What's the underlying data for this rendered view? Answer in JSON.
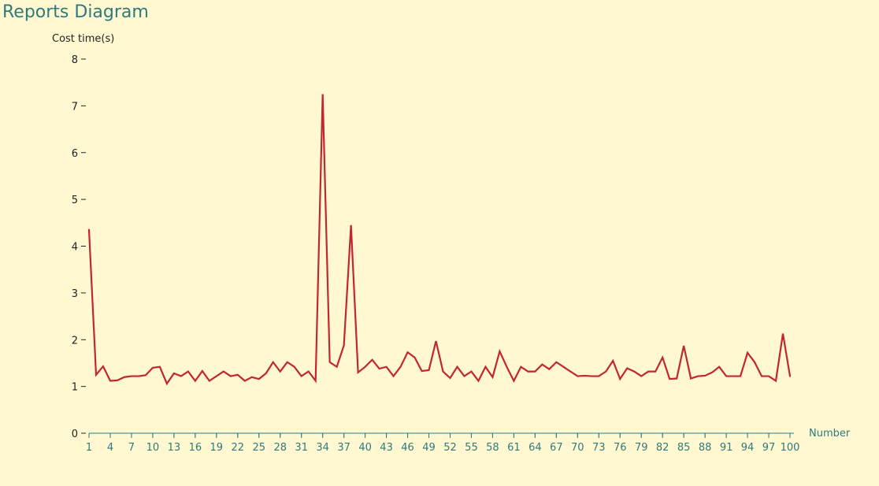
{
  "title": "Reports Diagram",
  "chart_data": {
    "type": "line",
    "ylabel": "Cost time(s)",
    "xlabel": "Number",
    "xlim": [
      1,
      100
    ],
    "ylim": [
      0,
      8
    ],
    "y_ticks": [
      "0",
      "1",
      "2",
      "3",
      "4",
      "5",
      "6",
      "7",
      "8"
    ],
    "x_ticks": [
      "1",
      "4",
      "7",
      "10",
      "13",
      "16",
      "19",
      "22",
      "25",
      "28",
      "31",
      "34",
      "37",
      "40",
      "43",
      "46",
      "49",
      "52",
      "55",
      "58",
      "61",
      "64",
      "67",
      "70",
      "73",
      "76",
      "79",
      "82",
      "85",
      "88",
      "91",
      "94",
      "97",
      "100"
    ],
    "grid": false,
    "colors": {
      "line": "#c1272d",
      "x_axis": "#2d7b7d",
      "y_axis": "#222222"
    },
    "series": [
      {
        "x": [
          1,
          2,
          3,
          4,
          5,
          6,
          7,
          8,
          9,
          10,
          11,
          12,
          13,
          14,
          15,
          16,
          17,
          18,
          19,
          20,
          21,
          22,
          23,
          24,
          25,
          26,
          27,
          28,
          29,
          30,
          31,
          32,
          33,
          34,
          35,
          36,
          37,
          38,
          39,
          40,
          41,
          42,
          43,
          44,
          45,
          46,
          47,
          48,
          49,
          50,
          51,
          52,
          53,
          54,
          55,
          56,
          57,
          58,
          59,
          60,
          61,
          62,
          63,
          64,
          65,
          66,
          67,
          68,
          69,
          70,
          71,
          72,
          73,
          74,
          75,
          76,
          77,
          78,
          79,
          80,
          81,
          82,
          83,
          84,
          85,
          86,
          87,
          88,
          89,
          90,
          91,
          92,
          93,
          94,
          95,
          96,
          97,
          98,
          99,
          100
        ],
        "values": [
          4.35,
          1.25,
          1.43,
          1.12,
          1.13,
          1.2,
          1.22,
          1.22,
          1.24,
          1.4,
          1.42,
          1.06,
          1.28,
          1.22,
          1.32,
          1.12,
          1.33,
          1.12,
          1.22,
          1.32,
          1.22,
          1.25,
          1.12,
          1.2,
          1.16,
          1.28,
          1.52,
          1.32,
          1.52,
          1.42,
          1.22,
          1.32,
          1.12,
          7.25,
          1.52,
          1.42,
          1.88,
          4.45,
          1.3,
          1.42,
          1.57,
          1.38,
          1.42,
          1.22,
          1.42,
          1.73,
          1.62,
          1.33,
          1.35,
          1.97,
          1.32,
          1.18,
          1.42,
          1.22,
          1.32,
          1.12,
          1.42,
          1.2,
          1.75,
          1.42,
          1.12,
          1.42,
          1.32,
          1.32,
          1.47,
          1.37,
          1.52,
          1.42,
          1.32,
          1.22,
          1.23,
          1.22,
          1.22,
          1.32,
          1.55,
          1.16,
          1.39,
          1.32,
          1.22,
          1.32,
          1.32,
          1.62,
          1.16,
          1.17,
          1.87,
          1.17,
          1.22,
          1.23,
          1.3,
          1.42,
          1.22,
          1.22,
          1.22,
          1.72,
          1.52,
          1.22,
          1.22,
          1.12,
          2.13,
          1.22
        ]
      }
    ]
  }
}
